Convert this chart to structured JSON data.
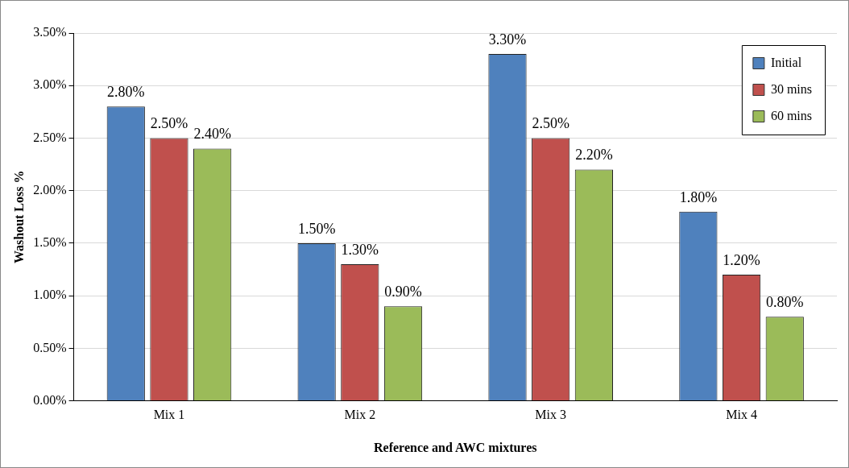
{
  "chart_data": {
    "type": "bar",
    "xlabel": "Reference and AWC mixtures",
    "ylabel": "Washout Loss %",
    "categories": [
      "Mix 1",
      "Mix 2",
      "Mix 3",
      "Mix 4"
    ],
    "series": [
      {
        "name": "Initial",
        "color": "#4f81bd",
        "values": [
          2.8,
          1.5,
          3.3,
          1.8
        ],
        "value_labels": [
          "2.80%",
          "1.50%",
          "3.30%",
          "1.80%"
        ]
      },
      {
        "name": "30 mins",
        "color": "#c0504d",
        "values": [
          2.5,
          1.3,
          2.5,
          1.2
        ],
        "value_labels": [
          "2.50%",
          "1.30%",
          "2.50%",
          "1.20%"
        ]
      },
      {
        "name": "60 mins",
        "color": "#9bbb59",
        "values": [
          2.4,
          0.9,
          2.2,
          0.8
        ],
        "value_labels": [
          "2.40%",
          "0.90%",
          "2.20%",
          "0.80%"
        ]
      }
    ],
    "ylim": [
      0,
      3.5
    ],
    "yticks": [
      {
        "value": 0,
        "label": "0.00%"
      },
      {
        "value": 0.5,
        "label": "0.50%"
      },
      {
        "value": 1,
        "label": "1.00%"
      },
      {
        "value": 1.5,
        "label": "1.50%"
      },
      {
        "value": 2,
        "label": "2.00%"
      },
      {
        "value": 2.5,
        "label": "2.50%"
      },
      {
        "value": 3,
        "label": "3.00%"
      },
      {
        "value": 3.5,
        "label": "3.50%"
      }
    ],
    "grid": "y",
    "legend": "top right"
  }
}
